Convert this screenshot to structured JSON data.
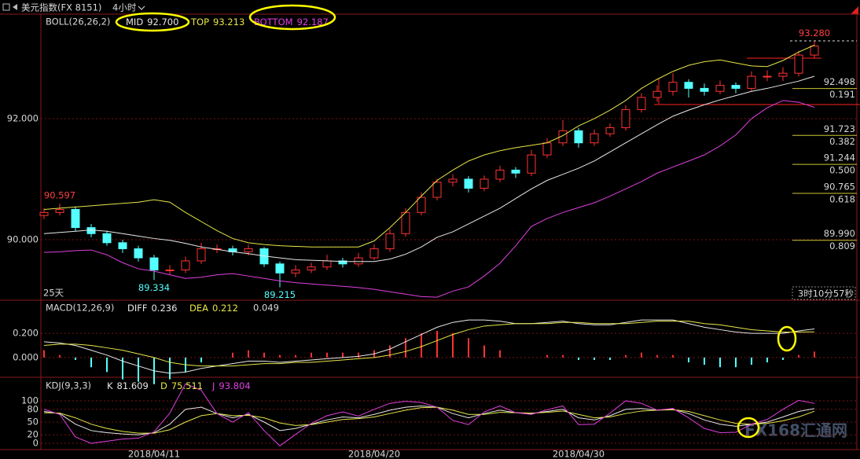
{
  "toolbar": {
    "title": "美元指数(FX 8151)",
    "period": "4小时"
  },
  "status": {
    "range": "25天",
    "countdown": "3时10分57秒"
  },
  "watermark": "FX168汇通网",
  "chart_data": [
    {
      "type": "candlestick",
      "title": "BOLL(26,26,2)",
      "categories": [
        null,
        null,
        null,
        null,
        null,
        null,
        null,
        "2018/04/11",
        null,
        null,
        null,
        null,
        null,
        null,
        null,
        null,
        null,
        null,
        null,
        null,
        null,
        "2018/04/20",
        null,
        null,
        null,
        null,
        null,
        null,
        null,
        null,
        null,
        null,
        null,
        null,
        "2018/04/30",
        null,
        null,
        null,
        null,
        null,
        null,
        null,
        null,
        null,
        null,
        null,
        null,
        null,
        null,
        null
      ],
      "open": [
        90.4,
        90.45,
        90.5,
        90.2,
        90.1,
        89.95,
        89.85,
        89.7,
        89.5,
        89.5,
        89.65,
        89.85,
        89.85,
        89.8,
        89.85,
        89.6,
        89.45,
        89.5,
        89.55,
        89.65,
        89.6,
        89.7,
        89.85,
        90.1,
        90.45,
        90.7,
        90.95,
        91.0,
        90.85,
        91.0,
        91.15,
        91.1,
        91.4,
        91.6,
        91.8,
        91.6,
        91.75,
        91.85,
        92.15,
        92.35,
        92.45,
        92.6,
        92.5,
        92.45,
        92.55,
        92.5,
        92.7,
        92.7,
        92.75,
        93.05
      ],
      "high": [
        90.52,
        90.597,
        90.55,
        90.26,
        90.15,
        90.0,
        89.9,
        89.75,
        89.58,
        89.72,
        89.95,
        89.92,
        89.9,
        89.92,
        89.88,
        89.64,
        89.58,
        89.62,
        89.75,
        89.7,
        89.78,
        89.92,
        90.18,
        90.52,
        90.78,
        91.0,
        91.08,
        91.05,
        91.06,
        91.22,
        91.2,
        91.48,
        91.68,
        91.98,
        91.85,
        91.82,
        91.92,
        92.22,
        92.42,
        92.55,
        92.75,
        92.65,
        92.58,
        92.63,
        92.6,
        92.78,
        92.8,
        92.85,
        93.12,
        93.28
      ],
      "low": [
        90.34,
        90.4,
        90.14,
        90.04,
        89.9,
        89.78,
        89.64,
        89.334,
        89.42,
        89.45,
        89.6,
        89.78,
        89.74,
        89.74,
        89.55,
        89.215,
        89.38,
        89.45,
        89.5,
        89.54,
        89.55,
        89.66,
        89.8,
        90.05,
        90.4,
        90.65,
        90.88,
        90.78,
        90.8,
        90.95,
        91.02,
        91.05,
        91.35,
        91.55,
        91.52,
        91.55,
        91.7,
        91.8,
        92.1,
        92.28,
        92.38,
        92.35,
        92.38,
        92.4,
        92.42,
        92.45,
        92.62,
        92.62,
        92.7,
        93.0
      ],
      "close": [
        90.45,
        90.5,
        90.2,
        90.1,
        89.95,
        89.85,
        89.7,
        89.5,
        89.5,
        89.65,
        89.85,
        89.85,
        89.8,
        89.85,
        89.6,
        89.45,
        89.5,
        89.55,
        89.65,
        89.6,
        89.7,
        89.85,
        90.1,
        90.45,
        90.7,
        90.95,
        91.0,
        90.85,
        91.0,
        91.15,
        91.1,
        91.4,
        91.6,
        91.8,
        91.6,
        91.75,
        91.85,
        92.15,
        92.35,
        92.45,
        92.6,
        92.5,
        92.45,
        92.55,
        92.5,
        92.7,
        92.7,
        92.75,
        93.05,
        93.2
      ],
      "up_color": "#ff3232",
      "down_color": "#54ffff",
      "series": [
        {
          "name": "MID",
          "color": "#e8e8e8",
          "values": [
            90.1,
            90.12,
            90.14,
            90.16,
            90.14,
            90.1,
            90.06,
            90.02,
            89.99,
            89.94,
            89.88,
            89.84,
            89.8,
            89.77,
            89.73,
            89.7,
            89.67,
            89.66,
            89.65,
            89.64,
            89.64,
            89.64,
            89.68,
            89.76,
            89.88,
            90.04,
            90.13,
            90.26,
            90.39,
            90.52,
            90.68,
            90.84,
            90.98,
            91.08,
            91.18,
            91.3,
            91.45,
            91.6,
            91.75,
            91.9,
            92.04,
            92.14,
            92.23,
            92.31,
            92.38,
            92.45,
            92.5,
            92.56,
            92.62,
            92.7
          ],
          "value_labels": [
            null,
            null,
            null,
            null,
            null,
            null,
            null,
            null,
            null,
            null,
            null,
            null,
            null,
            null,
            null,
            null,
            null,
            null,
            null,
            null,
            null,
            null,
            null,
            null,
            null,
            null,
            null,
            null,
            null,
            null,
            null,
            null,
            null,
            null,
            null,
            null,
            null,
            null,
            null,
            null,
            null,
            null,
            null,
            null,
            null,
            null,
            null,
            null,
            null,
            "92.700"
          ]
        },
        {
          "name": "TOP",
          "color": "#e6e64a",
          "values": [
            90.5,
            90.52,
            90.54,
            90.56,
            90.58,
            90.6,
            90.62,
            90.66,
            90.62,
            90.45,
            90.3,
            90.15,
            90.02,
            89.95,
            89.92,
            89.9,
            89.89,
            89.88,
            89.88,
            89.88,
            89.88,
            89.98,
            90.2,
            90.45,
            90.72,
            90.98,
            91.15,
            91.3,
            91.4,
            91.47,
            91.52,
            91.56,
            91.6,
            91.72,
            91.88,
            92.0,
            92.14,
            92.3,
            92.5,
            92.65,
            92.78,
            92.88,
            92.94,
            92.97,
            92.92,
            92.87,
            92.86,
            92.96,
            93.1,
            93.213
          ]
        },
        {
          "name": "BOTTOM",
          "color": "#e040e0",
          "values": [
            89.79,
            89.8,
            89.82,
            89.83,
            89.75,
            89.62,
            89.52,
            89.48,
            89.42,
            89.36,
            89.38,
            89.42,
            89.44,
            89.4,
            89.36,
            89.32,
            89.29,
            89.27,
            89.25,
            89.23,
            89.21,
            89.18,
            89.14,
            89.1,
            89.06,
            89.05,
            89.15,
            89.22,
            89.4,
            89.61,
            89.9,
            90.22,
            90.35,
            90.45,
            90.53,
            90.61,
            90.72,
            90.84,
            90.96,
            91.1,
            91.2,
            91.3,
            91.4,
            91.55,
            91.73,
            92.0,
            92.18,
            92.3,
            92.27,
            92.187
          ]
        }
      ],
      "ylim": [
        89,
        93.7
      ],
      "yticks": [
        {
          "value": 90,
          "label": "90.000"
        },
        {
          "value": 92,
          "label": "92.000"
        }
      ],
      "grid": true,
      "annotations": [
        {
          "value": 90.597,
          "color": "#ff4040"
        },
        {
          "value": 89.334,
          "color": "#54ffff"
        },
        {
          "value": 89.215,
          "color": "#54ffff"
        },
        {
          "value": 93.28,
          "label": "93.280",
          "color": "#ff4040"
        }
      ],
      "fib_levels": [
        {
          "price": 92.498,
          "ratio": 0.191
        },
        {
          "price": 91.723,
          "ratio": 0.382
        },
        {
          "price": 91.244,
          "ratio": {
            "value": 0.5,
            "label": "0.500"
          }
        },
        {
          "price": 90.765,
          "ratio": 0.618
        },
        {
          "price": {
            "value": 89.99,
            "label": "89.990"
          },
          "ratio": 0.809
        }
      ],
      "fib_color": "#c8c832"
    },
    {
      "type": "macd",
      "title": "MACD(12,26,9)",
      "series": [
        {
          "name": "DIFF",
          "color": "#e8e8e8",
          "values": [
            0.13,
            0.12,
            0.1,
            0.06,
            0.02,
            -0.03,
            -0.07,
            -0.11,
            -0.13,
            -0.12,
            -0.09,
            -0.07,
            -0.05,
            -0.03,
            -0.03,
            -0.04,
            -0.03,
            -0.02,
            -0.01,
            0.0,
            0.01,
            0.03,
            0.07,
            0.13,
            0.19,
            0.25,
            0.29,
            0.31,
            0.31,
            0.3,
            0.28,
            0.28,
            0.29,
            0.3,
            0.28,
            0.27,
            0.27,
            0.29,
            0.31,
            0.31,
            0.31,
            0.28,
            0.25,
            0.23,
            0.21,
            0.2,
            0.2,
            0.2,
            0.22,
            0.236
          ]
        },
        {
          "name": "DEA",
          "color": "#e6e64a",
          "values": [
            0.1,
            0.11,
            0.11,
            0.1,
            0.08,
            0.06,
            0.03,
            0.0,
            -0.04,
            -0.06,
            -0.07,
            -0.07,
            -0.07,
            -0.06,
            -0.05,
            -0.05,
            -0.04,
            -0.04,
            -0.03,
            -0.02,
            -0.01,
            0.0,
            0.02,
            0.05,
            0.09,
            0.14,
            0.19,
            0.23,
            0.26,
            0.27,
            0.28,
            0.28,
            0.28,
            0.29,
            0.29,
            0.28,
            0.28,
            0.28,
            0.29,
            0.3,
            0.3,
            0.3,
            0.28,
            0.27,
            0.25,
            0.23,
            0.22,
            0.21,
            0.21,
            0.212
          ]
        }
      ],
      "histogram": {
        "up_color": "#ff3232",
        "down_color": "#54ffff",
        "values": [
          0.06,
          0.02,
          -0.02,
          -0.08,
          -0.12,
          -0.18,
          -0.2,
          -0.22,
          -0.18,
          -0.12,
          -0.04,
          0.0,
          0.04,
          0.06,
          0.04,
          0.02,
          0.02,
          0.04,
          0.04,
          0.04,
          0.04,
          0.06,
          0.1,
          0.16,
          0.2,
          0.22,
          0.2,
          0.16,
          0.1,
          0.06,
          0.0,
          0.0,
          0.02,
          0.02,
          -0.02,
          -0.02,
          -0.02,
          0.02,
          0.04,
          0.02,
          0.02,
          -0.04,
          -0.06,
          -0.08,
          -0.08,
          -0.06,
          -0.04,
          -0.02,
          0.02,
          0.049
        ]
      },
      "ylim": [
        -0.15,
        0.46
      ],
      "yticks": [
        {
          "value": 0,
          "label": "0.000"
        },
        {
          "value": 0.2,
          "label": "0.200"
        }
      ],
      "grid": true
    },
    {
      "type": "line",
      "title": "KDJ(9,3,3)",
      "series": [
        {
          "name": "K",
          "color": "#e8e8e8",
          "values": [
            75,
            70,
            45,
            30,
            25,
            22,
            20,
            25,
            45,
            80,
            85,
            70,
            60,
            68,
            50,
            30,
            35,
            45,
            55,
            62,
            60,
            68,
            78,
            85,
            88,
            85,
            70,
            60,
            70,
            78,
            72,
            70,
            75,
            80,
            60,
            55,
            65,
            80,
            82,
            78,
            80,
            70,
            55,
            45,
            40,
            45,
            50,
            62,
            75,
            81.609
          ]
        },
        {
          "name": "D",
          "color": "#e6e64a",
          "values": [
            72,
            71,
            60,
            45,
            35,
            28,
            24,
            24,
            32,
            50,
            65,
            70,
            65,
            66,
            60,
            48,
            42,
            44,
            50,
            56,
            58,
            62,
            70,
            78,
            84,
            85,
            78,
            68,
            68,
            73,
            72,
            71,
            73,
            76,
            68,
            60,
            62,
            70,
            76,
            78,
            79,
            75,
            65,
            55,
            47,
            45,
            47,
            53,
            62,
            75.511
          ]
        },
        {
          "name": "J",
          "color": "#e040e0",
          "values": [
            80,
            68,
            15,
            0,
            5,
            10,
            12,
            27,
            71,
            140,
            125,
            70,
            50,
            72,
            30,
            -6,
            21,
            47,
            65,
            74,
            64,
            80,
            94,
            99,
            96,
            85,
            54,
            44,
            74,
            88,
            72,
            68,
            79,
            88,
            44,
            45,
            71,
            100,
            94,
            78,
            82,
            60,
            35,
            25,
            26,
            45,
            56,
            80,
            101,
            93.804
          ]
        }
      ],
      "ylim": [
        -11,
        148
      ],
      "yticks": [
        0,
        20,
        50,
        80,
        100
      ],
      "grid": true
    }
  ]
}
